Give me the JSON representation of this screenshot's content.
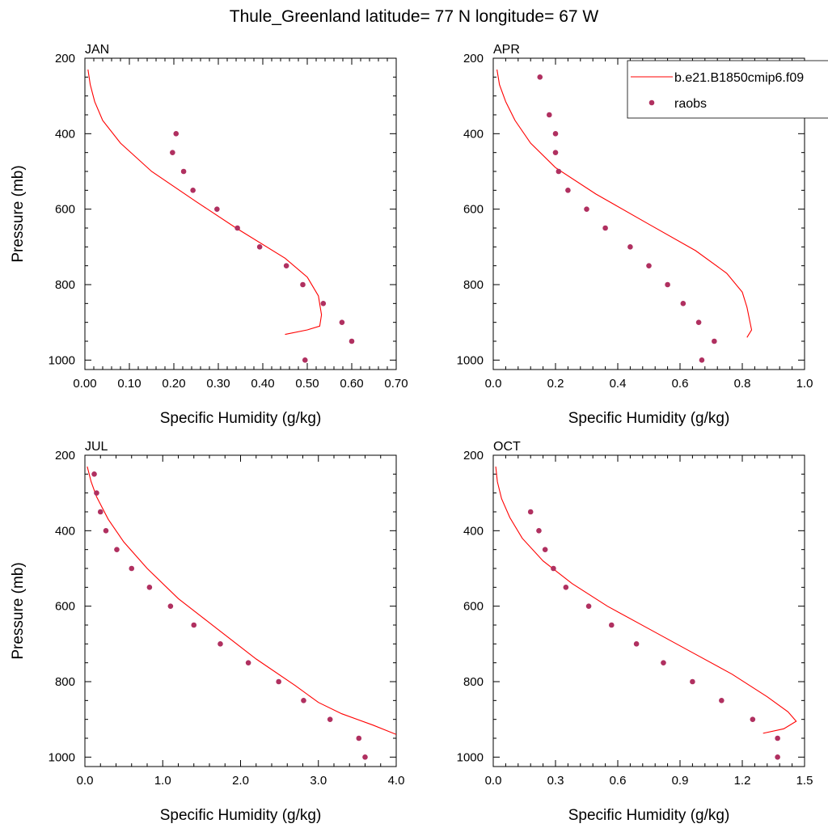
{
  "title": "Thule_Greenland  latitude= 77 N longitude= 67 W",
  "legend": {
    "model_label": "b.e21.B1850cmip6.f09",
    "obs_label": "raobs"
  },
  "colors": {
    "model_line": "#ff0000",
    "obs_marker": "#b03060",
    "axis": "#000000",
    "background": "#ffffff"
  },
  "chart_data": [
    {
      "type": "line",
      "panel_label": "JAN",
      "xlabel": "Specific Humidity (g/kg)",
      "ylabel": "Pressure (mb)",
      "xlim": [
        0.0,
        0.7
      ],
      "ylim": [
        1025,
        200
      ],
      "y_inverted": true,
      "xticks": [
        "0.00",
        "0.10",
        "0.20",
        "0.30",
        "0.40",
        "0.50",
        "0.60",
        "0.70"
      ],
      "yticks": [
        "200",
        "400",
        "600",
        "800",
        "1000"
      ],
      "series": [
        {
          "name": "b.e21.B1850cmip6.f09",
          "kind": "line",
          "x": [
            0.007,
            0.012,
            0.022,
            0.04,
            0.08,
            0.15,
            0.25,
            0.34,
            0.45,
            0.5,
            0.525,
            0.532,
            0.528,
            0.5,
            0.45
          ],
          "y": [
            230,
            270,
            315,
            365,
            425,
            500,
            580,
            650,
            730,
            780,
            830,
            880,
            910,
            920,
            932
          ]
        },
        {
          "name": "raobs",
          "kind": "scatter",
          "x": [
            0.205,
            0.197,
            0.222,
            0.243,
            0.297,
            0.343,
            0.393,
            0.453,
            0.49,
            0.536,
            0.578,
            0.6,
            0.495
          ],
          "y": [
            400,
            450,
            500,
            550,
            600,
            650,
            700,
            750,
            800,
            850,
            900,
            950,
            1000
          ]
        }
      ]
    },
    {
      "type": "line",
      "panel_label": "APR",
      "xlabel": "Specific Humidity (g/kg)",
      "ylabel": "",
      "xlim": [
        0.0,
        1.0
      ],
      "ylim": [
        1025,
        200
      ],
      "y_inverted": true,
      "xticks": [
        "0.0",
        "0.2",
        "0.4",
        "0.6",
        "0.8",
        "1.0"
      ],
      "yticks": [
        "200",
        "400",
        "600",
        "800",
        "1000"
      ],
      "series": [
        {
          "name": "b.e21.B1850cmip6.f09",
          "kind": "line",
          "x": [
            0.012,
            0.02,
            0.04,
            0.07,
            0.12,
            0.2,
            0.33,
            0.5,
            0.65,
            0.75,
            0.8,
            0.815,
            0.825,
            0.83,
            0.815
          ],
          "y": [
            230,
            270,
            315,
            365,
            425,
            490,
            560,
            640,
            710,
            770,
            820,
            860,
            900,
            920,
            940
          ]
        },
        {
          "name": "raobs",
          "kind": "scatter",
          "x": [
            0.15,
            0.18,
            0.2,
            0.2,
            0.21,
            0.24,
            0.3,
            0.36,
            0.44,
            0.5,
            0.56,
            0.61,
            0.66,
            0.71,
            0.67
          ],
          "y": [
            250,
            350,
            400,
            450,
            500,
            550,
            600,
            650,
            700,
            750,
            800,
            850,
            900,
            950,
            1000
          ]
        }
      ]
    },
    {
      "type": "line",
      "panel_label": "JUL",
      "xlabel": "Specific Humidity (g/kg)",
      "ylabel": "Pressure (mb)",
      "xlim": [
        0.0,
        4.0
      ],
      "ylim": [
        1025,
        200
      ],
      "y_inverted": true,
      "xticks": [
        "0.0",
        "1.0",
        "2.0",
        "3.0",
        "4.0"
      ],
      "yticks": [
        "200",
        "400",
        "600",
        "800",
        "1000"
      ],
      "series": [
        {
          "name": "b.e21.B1850cmip6.f09",
          "kind": "line",
          "x": [
            0.03,
            0.08,
            0.15,
            0.3,
            0.5,
            0.8,
            1.2,
            1.7,
            2.2,
            2.7,
            3.0,
            3.3,
            3.7,
            4.0
          ],
          "y": [
            230,
            270,
            310,
            370,
            430,
            500,
            580,
            660,
            740,
            810,
            855,
            885,
            915,
            940
          ]
        },
        {
          "name": "raobs",
          "kind": "scatter",
          "x": [
            0.12,
            0.15,
            0.2,
            0.27,
            0.41,
            0.6,
            0.83,
            1.1,
            1.4,
            1.74,
            2.1,
            2.49,
            2.81,
            3.15,
            3.52,
            3.6
          ],
          "y": [
            250,
            300,
            350,
            400,
            450,
            500,
            550,
            600,
            650,
            700,
            750,
            800,
            850,
            900,
            950,
            1000
          ]
        }
      ]
    },
    {
      "type": "line",
      "panel_label": "OCT",
      "xlabel": "Specific Humidity (g/kg)",
      "ylabel": "",
      "xlim": [
        0.0,
        1.5
      ],
      "ylim": [
        1025,
        200
      ],
      "y_inverted": true,
      "xticks": [
        "0.0",
        "0.3",
        "0.6",
        "0.9",
        "1.2",
        "1.5"
      ],
      "yticks": [
        "200",
        "400",
        "600",
        "800",
        "1000"
      ],
      "series": [
        {
          "name": "b.e21.B1850cmip6.f09",
          "kind": "line",
          "x": [
            0.012,
            0.02,
            0.04,
            0.08,
            0.14,
            0.24,
            0.38,
            0.55,
            0.75,
            0.95,
            1.15,
            1.32,
            1.42,
            1.46,
            1.4,
            1.3
          ],
          "y": [
            230,
            270,
            315,
            365,
            420,
            480,
            540,
            600,
            660,
            720,
            780,
            840,
            880,
            905,
            925,
            937
          ]
        },
        {
          "name": "raobs",
          "kind": "scatter",
          "x": [
            0.18,
            0.22,
            0.25,
            0.29,
            0.35,
            0.46,
            0.57,
            0.69,
            0.82,
            0.96,
            1.1,
            1.25,
            1.37,
            1.37
          ],
          "y": [
            350,
            400,
            450,
            500,
            550,
            600,
            650,
            700,
            750,
            800,
            850,
            900,
            950,
            1000
          ]
        }
      ]
    }
  ]
}
